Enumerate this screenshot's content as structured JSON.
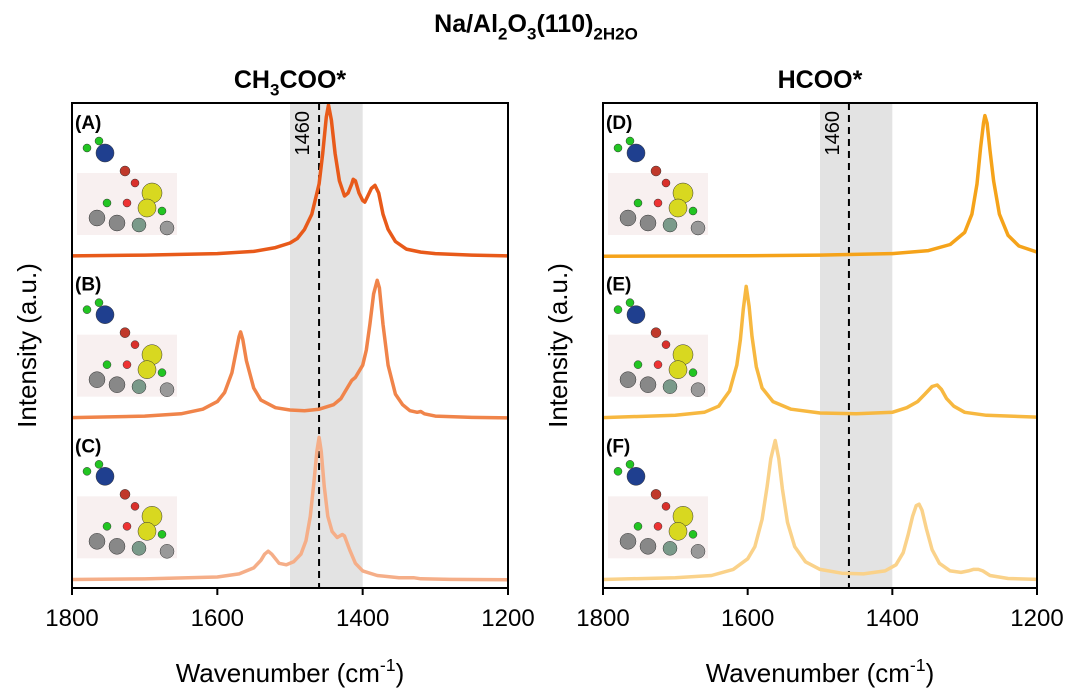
{
  "title": [
    {
      "text": "Na/Al"
    },
    {
      "text": "2",
      "sub": true
    },
    {
      "text": "O"
    },
    {
      "text": "3",
      "sub": true
    },
    {
      "text": "(110)"
    },
    {
      "text": "2H2O",
      "sub": true
    }
  ],
  "chart_data": [
    {
      "type": "line",
      "title": [
        {
          "text": "CH"
        },
        {
          "text": "3",
          "sub": true
        },
        {
          "text": "COO*"
        }
      ],
      "ylabel": "Intensity (a.u.)",
      "xlabel": [
        {
          "text": "Wavenumber (cm"
        },
        {
          "text": "-1",
          "sup": true
        },
        {
          "text": ")"
        }
      ],
      "xlim": [
        1800,
        1200
      ],
      "xticks": [
        1800,
        1600,
        1400,
        1200
      ],
      "shade": [
        1500,
        1400
      ],
      "marker_line": 1460,
      "spectra": [
        {
          "label": "(A)",
          "color": "#e85a1a",
          "ylim": [
            0,
            100
          ],
          "x": [
            1800,
            1700,
            1600,
            1550,
            1520,
            1500,
            1490,
            1480,
            1470,
            1460,
            1455,
            1450,
            1447,
            1443,
            1438,
            1432,
            1425,
            1420,
            1415,
            1413,
            1410,
            1405,
            1400,
            1397,
            1393,
            1388,
            1383,
            1378,
            1372,
            1365,
            1355,
            1340,
            1320,
            1300,
            1250,
            1200
          ],
          "values": [
            0.5,
            1,
            2,
            3.5,
            6,
            9,
            12,
            18,
            28,
            48,
            68,
            92,
            100,
            90,
            68,
            50,
            40,
            42,
            48,
            51,
            50,
            42,
            37,
            36,
            40,
            45,
            47,
            42,
            28,
            18,
            10,
            5,
            3,
            2,
            1,
            0.5
          ]
        },
        {
          "label": "(B)",
          "color": "#f0844a",
          "ylim": [
            0,
            100
          ],
          "x": [
            1800,
            1700,
            1650,
            1620,
            1600,
            1590,
            1580,
            1575,
            1570,
            1568,
            1565,
            1560,
            1550,
            1540,
            1520,
            1500,
            1480,
            1460,
            1440,
            1430,
            1420,
            1415,
            1410,
            1400,
            1395,
            1390,
            1385,
            1380,
            1377,
            1372,
            1365,
            1355,
            1345,
            1335,
            1325,
            1320,
            1315,
            1300,
            1250,
            1200
          ],
          "values": [
            0.5,
            1.5,
            3,
            6,
            11,
            17,
            30,
            42,
            54,
            57,
            52,
            38,
            20,
            12,
            7,
            5.5,
            5,
            6,
            9,
            13,
            21,
            25,
            27,
            35,
            45,
            62,
            82,
            91,
            86,
            62,
            35,
            16,
            9,
            5,
            4,
            4.5,
            3,
            1.5,
            0.6,
            0.3
          ]
        },
        {
          "label": "(C)",
          "color": "#f5ae88",
          "ylim": [
            0,
            100
          ],
          "x": [
            1800,
            1700,
            1600,
            1570,
            1550,
            1540,
            1535,
            1530,
            1525,
            1515,
            1505,
            1495,
            1485,
            1478,
            1472,
            1467,
            1463,
            1460,
            1457,
            1453,
            1448,
            1442,
            1435,
            1428,
            1425,
            1418,
            1410,
            1400,
            1380,
            1350,
            1330,
            1320,
            1280,
            1200
          ],
          "values": [
            0.3,
            0.7,
            2,
            4,
            8,
            13,
            17,
            19,
            17,
            11,
            10,
            12,
            17,
            26,
            42,
            65,
            85,
            94,
            85,
            62,
            42,
            32,
            28,
            30,
            29,
            20,
            11,
            6,
            3,
            1.5,
            1.5,
            0.8,
            0.4,
            0.2
          ]
        }
      ]
    },
    {
      "type": "line",
      "title": [
        {
          "text": "HCOO*"
        }
      ],
      "ylabel": "Intensity (a.u.)",
      "xlabel": [
        {
          "text": "Wavenumber (cm"
        },
        {
          "text": "-1",
          "sup": true
        },
        {
          "text": ")"
        }
      ],
      "xlim": [
        1800,
        1200
      ],
      "xticks": [
        1800,
        1600,
        1400,
        1200
      ],
      "shade": [
        1500,
        1400
      ],
      "marker_line": 1460,
      "spectra": [
        {
          "label": "(D)",
          "color": "#f5a31a",
          "ylim": [
            0,
            100
          ],
          "x": [
            1800,
            1600,
            1500,
            1400,
            1350,
            1320,
            1300,
            1290,
            1283,
            1278,
            1274,
            1272,
            1269,
            1265,
            1260,
            1252,
            1240,
            1225,
            1200
          ],
          "values": [
            0.3,
            0.6,
            1,
            2,
            4,
            8,
            16,
            28,
            48,
            72,
            88,
            93,
            88,
            70,
            50,
            28,
            14,
            7,
            3
          ]
        },
        {
          "label": "(E)",
          "color": "#f7b840",
          "ylim": [
            0,
            100
          ],
          "x": [
            1800,
            1700,
            1660,
            1640,
            1625,
            1615,
            1610,
            1606,
            1602,
            1598,
            1594,
            1588,
            1580,
            1565,
            1540,
            1500,
            1450,
            1400,
            1380,
            1365,
            1355,
            1345,
            1338,
            1332,
            1325,
            1315,
            1300,
            1270,
            1200
          ],
          "values": [
            0.5,
            2,
            4,
            8,
            18,
            35,
            52,
            72,
            87,
            74,
            54,
            34,
            20,
            11,
            6,
            3.5,
            3,
            4,
            7,
            11,
            16,
            21,
            22,
            19,
            13,
            8,
            4,
            2,
            0.8
          ]
        },
        {
          "label": "(F)",
          "color": "#fad28a",
          "ylim": [
            0,
            100
          ],
          "x": [
            1800,
            1700,
            1650,
            1620,
            1600,
            1590,
            1580,
            1573,
            1568,
            1562,
            1557,
            1552,
            1545,
            1535,
            1520,
            1500,
            1470,
            1440,
            1410,
            1395,
            1385,
            1378,
            1372,
            1367,
            1363,
            1359,
            1353,
            1345,
            1335,
            1320,
            1305,
            1295,
            1288,
            1281,
            1275,
            1265,
            1240,
            1200
          ],
          "values": [
            0.3,
            1.5,
            3,
            7,
            14,
            22,
            40,
            62,
            80,
            92,
            80,
            60,
            38,
            22,
            12,
            7,
            4.5,
            4,
            6,
            10,
            18,
            30,
            42,
            49,
            50,
            46,
            34,
            20,
            11,
            6,
            5,
            6,
            7,
            7,
            6,
            3,
            1,
            0.4
          ]
        }
      ]
    }
  ]
}
